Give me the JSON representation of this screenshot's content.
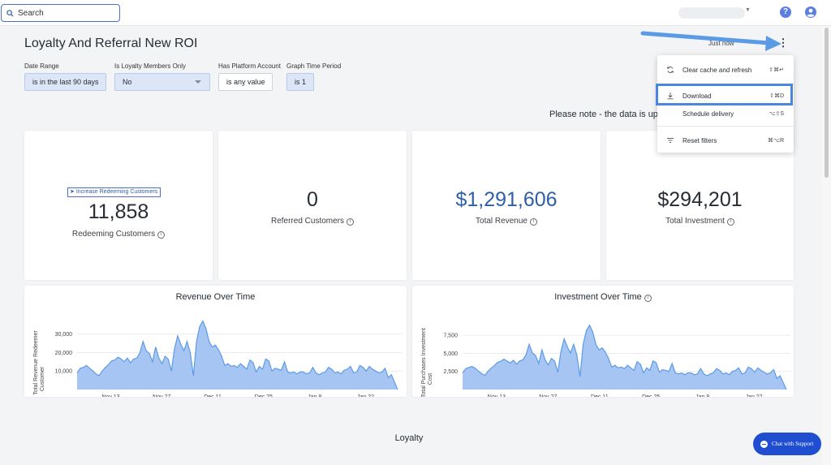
{
  "topbar": {
    "search_label": "Search",
    "help_label": "?"
  },
  "header": {
    "title": "Loyalty And Referral New ROI",
    "refresh_time": "Just now"
  },
  "filters": [
    {
      "label": "Date Range",
      "value": "is in the last 90 days"
    },
    {
      "label": "Is Loyalty Members Only",
      "value": "No"
    },
    {
      "label": "Has Platform Account",
      "value": "is any value"
    },
    {
      "label": "Graph Time Period",
      "value": "is 1"
    }
  ],
  "notice": "Please note - the data is up",
  "kpis": {
    "redeeming": {
      "value": "11,858",
      "label": "Redeeming Customers",
      "link": "Increase Redeeming Customers"
    },
    "referred": {
      "value": "0",
      "label": "Referred Customers"
    },
    "revenue": {
      "value": "$1,291,606",
      "label": "Total Revenue"
    },
    "investment": {
      "value": "$294,201",
      "label": "Total Investment"
    }
  },
  "menu": {
    "items": [
      {
        "label": "Clear cache and refresh",
        "shortcut": "⇧⌘↵",
        "icon": "refresh-icon"
      },
      {
        "label": "Download",
        "shortcut": "⇧⌘D",
        "icon": "download-icon"
      },
      {
        "label": "Schedule delivery",
        "shortcut": "⌥⇧S",
        "icon": "schedule-icon"
      },
      {
        "label": "Reset filters",
        "shortcut": "⌘⌥R",
        "icon": "filter-icon"
      }
    ]
  },
  "section_title": "Loyalty",
  "chat_label": "Chat with Support",
  "colors": {
    "accent": "#2f5ea8",
    "area_fill": "#a7c5f2",
    "area_line": "#5b9be6",
    "chat": "#1f4fd0"
  },
  "chart_data": [
    {
      "type": "area",
      "title": "Revenue Over Time",
      "ylabel": "Total Revenue Redeemer Customer",
      "x_tick_labels": [
        "Nov 13",
        "Nov 27",
        "Dec 11",
        "Dec 25",
        "Jan 8",
        "Jan 22"
      ],
      "y_tick_labels": [
        "10,000",
        "20,000",
        "30,000"
      ],
      "ylim": [
        0,
        36000
      ],
      "grid": true,
      "values": [
        9000,
        11500,
        12000,
        13000,
        11500,
        10000,
        8500,
        7500,
        10000,
        12000,
        13500,
        15500,
        16000,
        17500,
        16500,
        15000,
        17000,
        14500,
        16500,
        17000,
        20000,
        26000,
        21000,
        19500,
        15000,
        23000,
        17000,
        14000,
        18000,
        16500,
        10000,
        22000,
        29000,
        24500,
        21000,
        26000,
        20000,
        7500,
        26000,
        34000,
        37000,
        33000,
        26000,
        23000,
        24000,
        21500,
        18000,
        13000,
        14000,
        12500,
        13000,
        12000,
        14000,
        12500,
        11000,
        16000,
        14500,
        9500,
        12500,
        11000,
        16500,
        15500,
        10000,
        11500,
        11000,
        10500,
        15000,
        9500,
        9000,
        9500,
        8500,
        9500,
        9500,
        8500,
        9000,
        12000,
        9000,
        8000,
        9000,
        9500,
        12000,
        11000,
        9000,
        9500,
        8500,
        10500,
        11000,
        12500,
        9000,
        9500,
        13000,
        12000,
        10000,
        12500,
        11000,
        10000,
        9000,
        9500,
        11500,
        6500,
        8000,
        4000,
        0
      ]
    },
    {
      "type": "area",
      "title": "Investment Over Time",
      "ylabel": "Total Purchases Investment Cost",
      "x_tick_labels": [
        "Nov 13",
        "Nov 27",
        "Dec 11",
        "Dec 25",
        "Jan 8",
        "Jan 22"
      ],
      "y_tick_labels": [
        "2,500",
        "5,000",
        "7,500"
      ],
      "ylim": [
        0,
        9200
      ],
      "grid": true,
      "values": [
        2300,
        2900,
        3050,
        3200,
        2950,
        2550,
        2200,
        1950,
        2500,
        2950,
        3300,
        3750,
        3900,
        4200,
        3950,
        3650,
        4050,
        3500,
        3950,
        4100,
        4800,
        6250,
        5050,
        4700,
        3600,
        5500,
        4100,
        3400,
        4300,
        3950,
        2400,
        5300,
        7000,
        5900,
        5050,
        6250,
        4800,
        1800,
        6250,
        8150,
        8900,
        7950,
        6250,
        5500,
        5750,
        5150,
        4300,
        3100,
        3350,
        3000,
        3100,
        2900,
        3350,
        3000,
        2650,
        3850,
        3500,
        2300,
        3000,
        2650,
        3950,
        3700,
        2400,
        2750,
        2650,
        2500,
        3600,
        2300,
        2150,
        2300,
        2050,
        2300,
        2300,
        2050,
        2150,
        2900,
        2150,
        1900,
        2150,
        2300,
        2900,
        2650,
        2150,
        2300,
        2050,
        2500,
        2650,
        3000,
        2150,
        2300,
        3100,
        2900,
        2400,
        3000,
        2650,
        2400,
        2150,
        2300,
        2750,
        1550,
        1900,
        950,
        0
      ]
    }
  ]
}
